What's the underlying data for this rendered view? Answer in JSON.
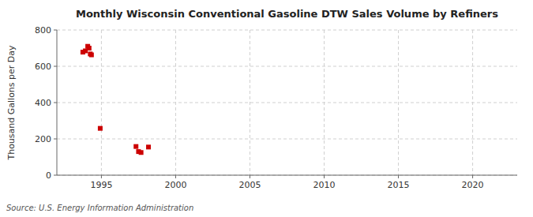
{
  "chart_data": {
    "type": "scatter",
    "title": "Monthly Wisconsin Conventional Gasoline DTW Sales Volume by Refiners",
    "ylabel": "Thousand Gallons per Day",
    "source": "Source: U.S. Energy Information Administration",
    "x": [
      1993.75,
      1993.92,
      1994.08,
      1994.17,
      1994.25,
      1994.33,
      1994.92,
      1997.33,
      1997.5,
      1997.67,
      1998.17
    ],
    "values": [
      678,
      685,
      710,
      700,
      668,
      663,
      258,
      158,
      130,
      125,
      155
    ],
    "color": "#cc0000",
    "marker": "square",
    "xlim": [
      1992,
      2023
    ],
    "ylim": [
      0,
      800
    ],
    "xticks": [
      1995,
      2000,
      2005,
      2010,
      2015,
      2020
    ],
    "yticks": [
      0,
      200,
      400,
      600,
      800
    ],
    "grid": true
  }
}
